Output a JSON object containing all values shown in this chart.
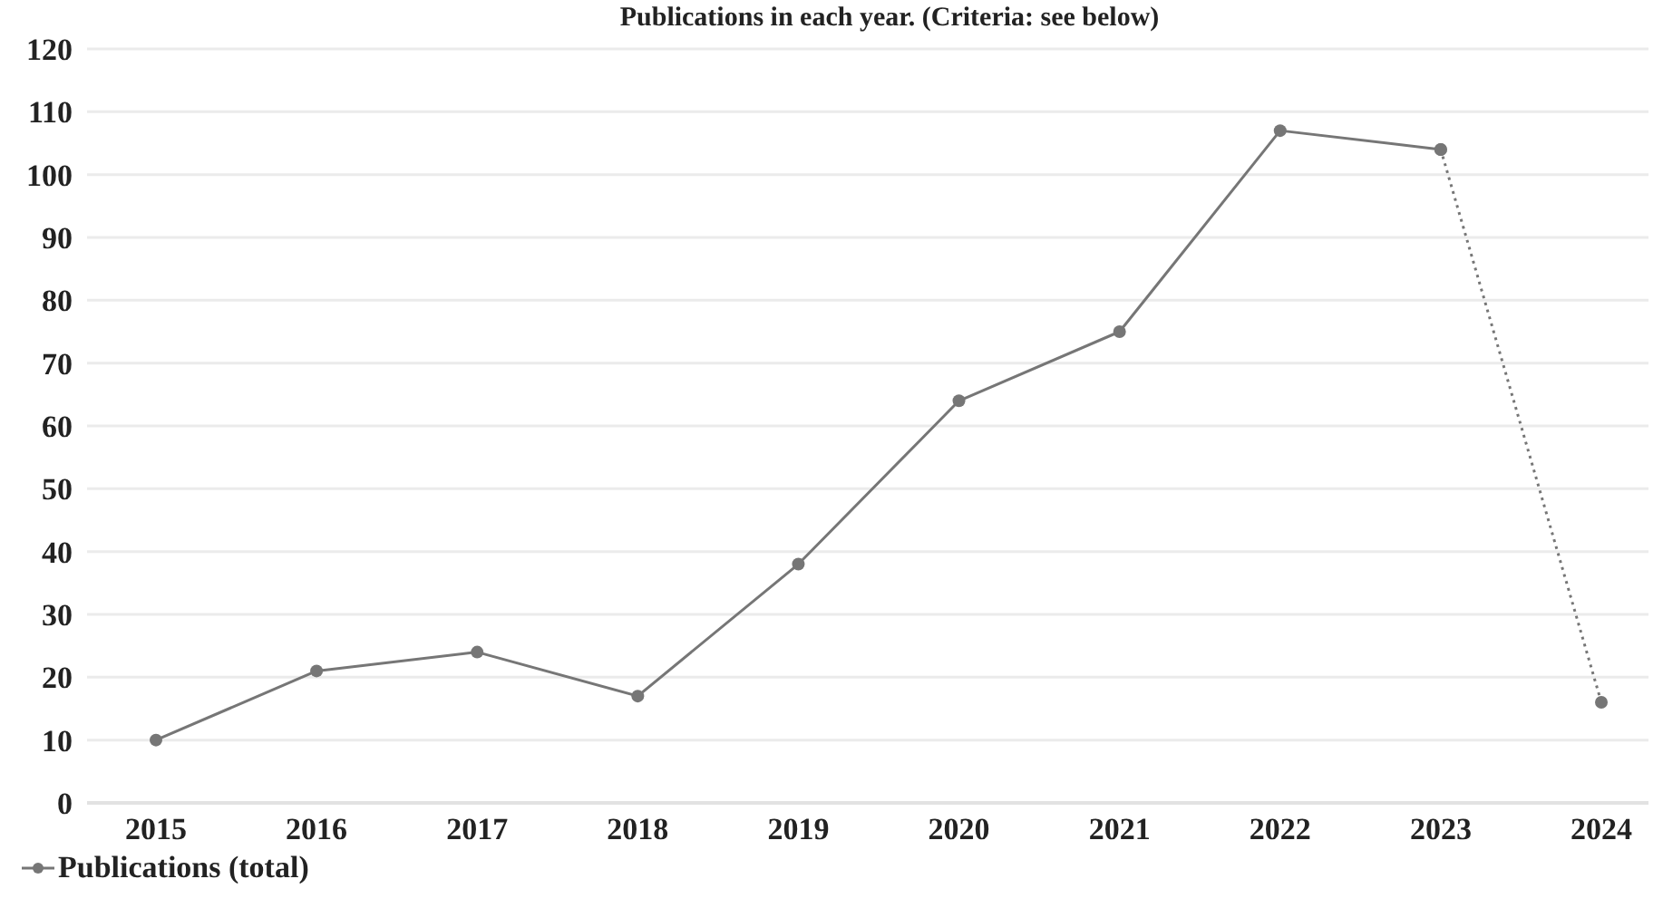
{
  "chart_data": {
    "type": "line",
    "title": "Publications in each year. (Criteria: see below)",
    "categories": [
      "2015",
      "2016",
      "2017",
      "2018",
      "2019",
      "2020",
      "2021",
      "2022",
      "2023",
      "2024"
    ],
    "series": [
      {
        "name": "Publications (total)",
        "color": "#767676",
        "values": [
          10,
          21,
          24,
          17,
          38,
          64,
          75,
          107,
          104,
          null
        ],
        "line_style": "solid"
      },
      {
        "color": "#767676",
        "values": [
          null,
          null,
          null,
          null,
          null,
          null,
          null,
          null,
          104,
          16
        ],
        "line_style": "dotted"
      }
    ],
    "ylim": [
      0,
      120
    ],
    "yticks": [
      0,
      10,
      20,
      30,
      40,
      50,
      60,
      70,
      80,
      90,
      100,
      110,
      120
    ],
    "grid": "y",
    "legend": "bottom left",
    "marker": "circle"
  }
}
